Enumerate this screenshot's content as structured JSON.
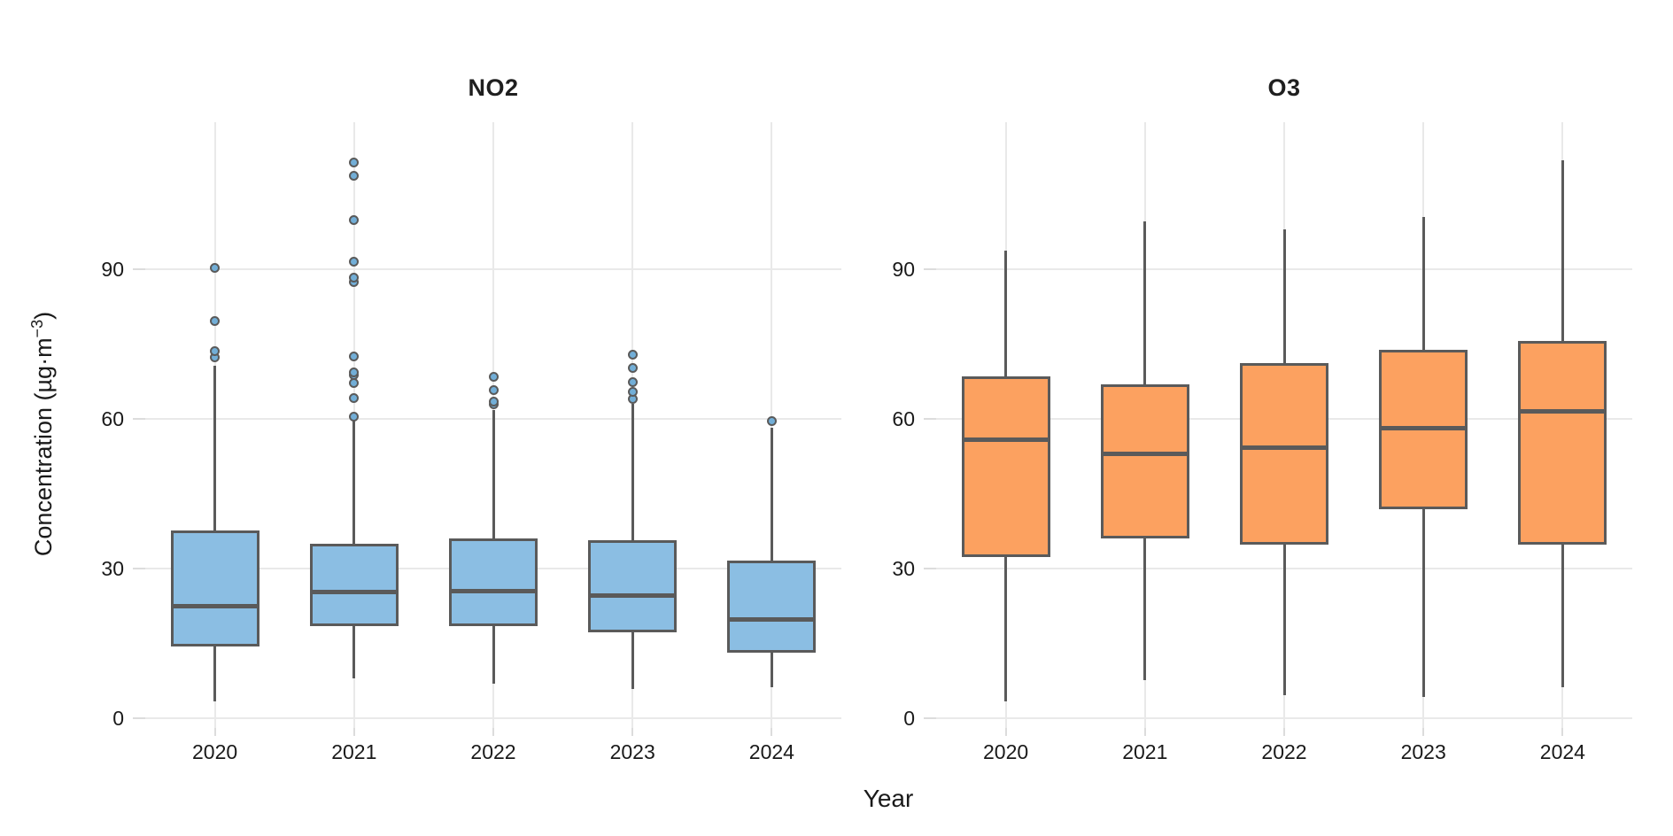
{
  "chart_data": {
    "type": "boxplot",
    "xlabel": "Year",
    "ylabel": "Concentration (µg·m−3)",
    "ylabel_parts": {
      "main": "Concentration (µg·m",
      "sup": "−3",
      "close": ")"
    },
    "yticks": [
      0,
      30,
      60,
      90
    ],
    "ylim": [
      -2,
      119.5
    ],
    "categories": [
      "2020",
      "2021",
      "2022",
      "2023",
      "2024"
    ],
    "grid": "major horizontal at yticks and vertical at each category, light gray, no panel border",
    "legend": "none",
    "facets": [
      {
        "title": "NO2",
        "box_fill": "#8BBEE3",
        "outlier_fill": "#72AED7",
        "boxes": [
          {
            "category": "2020",
            "whisker_low": 3.3,
            "q1": 14.4,
            "median": 22.4,
            "q3": 37.6,
            "whisker_high": 70.6,
            "outliers": [
              72.4,
              73.6,
              79.6,
              90.3
            ]
          },
          {
            "category": "2021",
            "whisker_low": 8.0,
            "q1": 18.4,
            "median": 25.2,
            "q3": 35.0,
            "whisker_high": 59.7,
            "outliers": [
              60.4,
              64.1,
              67.1,
              68.8,
              69.4,
              72.5,
              87.4,
              88.3,
              91.6,
              99.8,
              108.7,
              111.4
            ]
          },
          {
            "category": "2022",
            "whisker_low": 6.8,
            "q1": 18.4,
            "median": 25.4,
            "q3": 36.0,
            "whisker_high": 61.8,
            "outliers": [
              62.9,
              63.5,
              65.8,
              68.4
            ]
          },
          {
            "category": "2023",
            "whisker_low": 5.8,
            "q1": 17.1,
            "median": 24.5,
            "q3": 35.7,
            "whisker_high": 63.1,
            "outliers": [
              64.0,
              65.4,
              67.3,
              70.2,
              72.9
            ]
          },
          {
            "category": "2024",
            "whisker_low": 6.1,
            "q1": 13.1,
            "median": 19.8,
            "q3": 31.5,
            "whisker_high": 58.3,
            "outliers": [
              59.6
            ]
          }
        ]
      },
      {
        "title": "O3",
        "box_fill": "#FCA160",
        "outlier_fill": "#FCA160",
        "boxes": [
          {
            "category": "2020",
            "whisker_low": 3.3,
            "q1": 32.3,
            "median": 55.9,
            "q3": 68.6,
            "whisker_high": 93.7,
            "outliers": []
          },
          {
            "category": "2021",
            "whisker_low": 7.6,
            "q1": 36.1,
            "median": 52.9,
            "q3": 67.0,
            "whisker_high": 99.6,
            "outliers": []
          },
          {
            "category": "2022",
            "whisker_low": 4.6,
            "q1": 34.7,
            "median": 54.3,
            "q3": 71.2,
            "whisker_high": 98.0,
            "outliers": []
          },
          {
            "category": "2023",
            "whisker_low": 4.3,
            "q1": 41.8,
            "median": 58.1,
            "q3": 73.8,
            "whisker_high": 100.5,
            "outliers": []
          },
          {
            "category": "2024",
            "whisker_low": 6.2,
            "q1": 34.7,
            "median": 61.5,
            "q3": 75.6,
            "whisker_high": 111.9,
            "outliers": []
          }
        ]
      }
    ],
    "style": {
      "box_border": "#5A5A5A",
      "median_color": "#5A5A5A",
      "whisker_color": "#5A5A5A",
      "outlier_stroke": "#5A5A5A",
      "gridline_color": "#E9E9E9",
      "tick_color": "#DCDCDC",
      "text_color": "#1A1A1A",
      "background": "#FFFFFF"
    }
  }
}
